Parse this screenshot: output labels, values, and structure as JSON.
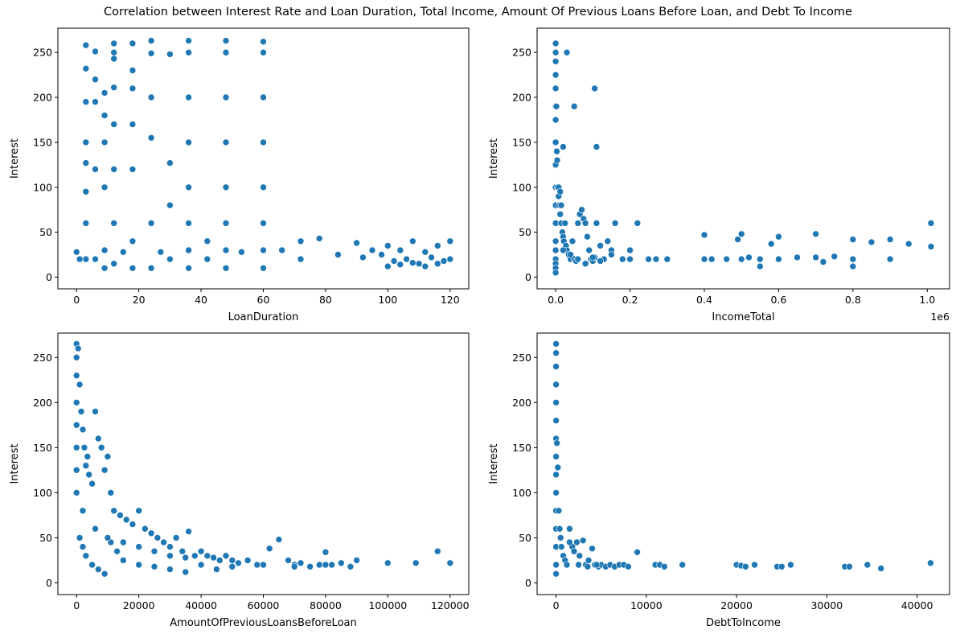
{
  "figure": {
    "title": "Correlation between Interest Rate and Loan Duration, Total Income, Amount Of Previous Loans Before Loan, and Debt To Income"
  },
  "colors": {
    "marker": "#1f77b4",
    "marker_edge": "#ffffff",
    "axes": "#000000"
  },
  "chart_data": [
    {
      "type": "scatter",
      "xlabel": "LoanDuration",
      "ylabel": "Interest",
      "xlim": [
        -6,
        126
      ],
      "ylim": [
        -13,
        277
      ],
      "xticks": [
        0,
        20,
        40,
        60,
        80,
        100,
        120
      ],
      "xtick_labels": [
        "0",
        "20",
        "40",
        "60",
        "80",
        "100",
        "120"
      ],
      "yticks": [
        0,
        50,
        100,
        150,
        200,
        250
      ],
      "ytick_labels": [
        "0",
        "50",
        "100",
        "150",
        "200",
        "250"
      ],
      "grid": false,
      "points": {
        "x": [
          3,
          3,
          3,
          3,
          3,
          3,
          3,
          3,
          6,
          6,
          6,
          6,
          6,
          9,
          9,
          9,
          9,
          9,
          9,
          12,
          12,
          12,
          12,
          12,
          12,
          12,
          12,
          18,
          18,
          18,
          18,
          18,
          18,
          18,
          24,
          24,
          24,
          24,
          24,
          24,
          30,
          30,
          30,
          30,
          36,
          36,
          36,
          36,
          36,
          36,
          36,
          36,
          42,
          42,
          48,
          48,
          48,
          48,
          48,
          48,
          48,
          48,
          60,
          60,
          60,
          60,
          60,
          60,
          60,
          60,
          66,
          72,
          72,
          78,
          84,
          90,
          92,
          95,
          98,
          100,
          102,
          104,
          106,
          108,
          110,
          112,
          114,
          116,
          118,
          120,
          100,
          104,
          108,
          112,
          116,
          120,
          15,
          27,
          53,
          0,
          1
        ],
        "y": [
          258,
          232,
          195,
          150,
          127,
          95,
          60,
          20,
          251,
          220,
          195,
          120,
          20,
          205,
          180,
          150,
          100,
          30,
          10,
          260,
          250,
          243,
          211,
          170,
          120,
          60,
          15,
          260,
          230,
          210,
          170,
          120,
          40,
          10,
          263,
          249,
          200,
          155,
          60,
          10,
          248,
          127,
          80,
          20,
          263,
          250,
          200,
          150,
          100,
          60,
          30,
          10,
          40,
          20,
          263,
          250,
          200,
          150,
          100,
          60,
          30,
          10,
          262,
          250,
          200,
          150,
          100,
          60,
          30,
          10,
          30,
          40,
          20,
          43,
          25,
          38,
          22,
          30,
          25,
          35,
          18,
          30,
          20,
          40,
          15,
          28,
          22,
          35,
          18,
          40,
          12,
          14,
          16,
          12,
          15,
          20,
          28,
          28,
          28,
          28,
          20
        ]
      }
    },
    {
      "type": "scatter",
      "xlabel": "IncomeTotal",
      "ylabel": "Interest",
      "offset_label": "1e6",
      "xlim": [
        -50000,
        1060000
      ],
      "ylim": [
        -13,
        277
      ],
      "xticks": [
        0,
        200000,
        400000,
        600000,
        800000,
        1000000
      ],
      "xtick_labels": [
        "0.0",
        "0.2",
        "0.4",
        "0.6",
        "0.8",
        "1.0"
      ],
      "yticks": [
        0,
        50,
        100,
        150,
        200,
        250
      ],
      "ytick_labels": [
        "0",
        "50",
        "100",
        "150",
        "200",
        "250"
      ],
      "grid": false,
      "points": {
        "x": [
          0,
          0,
          0,
          0,
          0,
          0,
          0,
          0,
          0,
          0,
          0,
          0,
          0,
          0,
          0,
          0,
          0,
          0,
          2000,
          4000,
          6000,
          8000,
          10000,
          12000,
          15000,
          18000,
          20000,
          22000,
          25000,
          28000,
          30000,
          35000,
          40000,
          45000,
          50000,
          55000,
          60000,
          65000,
          70000,
          75000,
          80000,
          85000,
          90000,
          95000,
          100000,
          105000,
          110000,
          120000,
          130000,
          140000,
          150000,
          160000,
          180000,
          200000,
          220000,
          250000,
          270000,
          300000,
          20000,
          30000,
          50000,
          105000,
          110000,
          20000,
          40000,
          60000,
          80000,
          100000,
          120000,
          150000,
          200000,
          400000,
          400000,
          420000,
          460000,
          490000,
          500000,
          500000,
          520000,
          550000,
          550000,
          580000,
          600000,
          600000,
          650000,
          700000,
          700000,
          720000,
          750000,
          800000,
          800000,
          800000,
          850000,
          900000,
          900000,
          950000,
          1010000,
          1010000,
          5000,
          3000,
          8000,
          12000,
          15000
        ],
        "y": [
          260,
          250,
          240,
          225,
          210,
          190,
          175,
          150,
          125,
          100,
          80,
          60,
          40,
          30,
          20,
          15,
          10,
          5,
          190,
          130,
          100,
          90,
          80,
          70,
          60,
          50,
          45,
          40,
          60,
          35,
          30,
          25,
          20,
          40,
          20,
          18,
          60,
          70,
          75,
          65,
          60,
          45,
          30,
          20,
          18,
          22,
          60,
          35,
          20,
          40,
          30,
          60,
          20,
          30,
          60,
          20,
          20,
          20,
          145,
          250,
          190,
          210,
          145,
          30,
          25,
          20,
          15,
          22,
          18,
          25,
          20,
          47,
          20,
          20,
          20,
          42,
          48,
          20,
          22,
          12,
          20,
          37,
          45,
          20,
          22,
          48,
          22,
          17,
          23,
          42,
          20,
          12,
          39,
          42,
          20,
          37,
          60,
          34,
          100,
          140,
          100,
          95,
          80
        ]
      }
    },
    {
      "type": "scatter",
      "xlabel": "AmountOfPreviousLoansBeforeLoan",
      "ylabel": "Interest",
      "xlim": [
        -6000,
        126000
      ],
      "ylim": [
        -13,
        277
      ],
      "xticks": [
        0,
        20000,
        40000,
        60000,
        80000,
        100000,
        120000
      ],
      "xtick_labels": [
        "0",
        "20000",
        "40000",
        "60000",
        "80000",
        "100000",
        "120000"
      ],
      "yticks": [
        0,
        50,
        100,
        150,
        200,
        250
      ],
      "ytick_labels": [
        "0",
        "50",
        "100",
        "150",
        "200",
        "250"
      ],
      "grid": false,
      "points": {
        "x": [
          0,
          0,
          0,
          0,
          0,
          0,
          0,
          0,
          500,
          1000,
          1500,
          2000,
          2500,
          3000,
          3500,
          4000,
          5000,
          6000,
          7000,
          8000,
          9000,
          10000,
          11000,
          12000,
          14000,
          16000,
          18000,
          20000,
          22000,
          24000,
          26000,
          28000,
          30000,
          32000,
          34000,
          36000,
          38000,
          40000,
          42000,
          44000,
          46000,
          48000,
          50000,
          52000,
          55000,
          58000,
          60000,
          62000,
          65000,
          68000,
          70000,
          72000,
          75000,
          78000,
          80000,
          82000,
          85000,
          88000,
          90000,
          100000,
          109000,
          116000,
          120000,
          1000,
          2000,
          3000,
          5000,
          7000,
          9000,
          11000,
          13000,
          15000,
          20000,
          25000,
          30000,
          35000,
          40000,
          45000,
          50000,
          60000,
          70000,
          80000,
          2000,
          6000,
          10000,
          15000,
          20000,
          25000,
          30000,
          35000
        ],
        "y": [
          265,
          250,
          230,
          200,
          175,
          150,
          125,
          100,
          260,
          220,
          190,
          170,
          150,
          130,
          140,
          120,
          110,
          190,
          160,
          150,
          125,
          140,
          100,
          80,
          75,
          70,
          65,
          80,
          60,
          55,
          50,
          45,
          40,
          50,
          35,
          57,
          30,
          35,
          30,
          28,
          25,
          30,
          25,
          22,
          25,
          20,
          20,
          38,
          48,
          25,
          20,
          22,
          18,
          20,
          34,
          20,
          22,
          18,
          25,
          22,
          22,
          35,
          22,
          50,
          40,
          30,
          20,
          15,
          10,
          45,
          35,
          25,
          20,
          18,
          15,
          12,
          20,
          15,
          18,
          20,
          18,
          20,
          80,
          60,
          50,
          45,
          40,
          35,
          30,
          28
        ]
      }
    },
    {
      "type": "scatter",
      "xlabel": "DebtToIncome",
      "ylabel": "Interest",
      "xlim": [
        -2100,
        43600
      ],
      "ylim": [
        -13,
        277
      ],
      "xticks": [
        0,
        10000,
        20000,
        30000,
        40000
      ],
      "xtick_labels": [
        "0",
        "10000",
        "20000",
        "30000",
        "40000"
      ],
      "yticks": [
        0,
        50,
        100,
        150,
        200,
        250
      ],
      "ytick_labels": [
        "0",
        "50",
        "100",
        "150",
        "200",
        "250"
      ],
      "grid": false,
      "points": {
        "x": [
          0,
          0,
          0,
          0,
          0,
          0,
          0,
          0,
          0,
          0,
          0,
          0,
          0,
          0,
          0,
          100,
          200,
          300,
          400,
          500,
          600,
          800,
          1000,
          1200,
          1500,
          1800,
          2000,
          2300,
          2600,
          3000,
          3300,
          3600,
          4000,
          4300,
          4700,
          5000,
          5500,
          6000,
          6500,
          7000,
          7500,
          8000,
          9000,
          11000,
          11500,
          12000,
          14000,
          20000,
          20500,
          21000,
          22000,
          24500,
          25000,
          26000,
          32000,
          32500,
          34500,
          36000,
          41500,
          1500,
          2500,
          3500,
          4500
        ],
        "y": [
          265,
          255,
          240,
          220,
          200,
          180,
          160,
          140,
          120,
          100,
          80,
          60,
          40,
          20,
          10,
          155,
          128,
          80,
          60,
          50,
          40,
          30,
          25,
          20,
          60,
          40,
          35,
          45,
          30,
          47,
          20,
          25,
          38,
          20,
          18,
          20,
          18,
          20,
          18,
          20,
          20,
          18,
          34,
          20,
          20,
          18,
          20,
          20,
          19,
          18,
          20,
          18,
          18,
          20,
          18,
          18,
          20,
          16,
          22,
          45,
          20,
          18,
          20
        ]
      }
    }
  ]
}
